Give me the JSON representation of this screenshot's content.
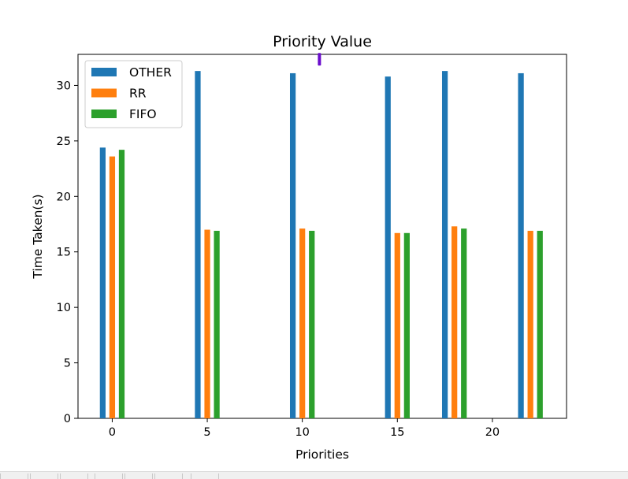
{
  "chart_data": {
    "type": "bar",
    "title": "Priority Value",
    "xlabel": "Priorities",
    "ylabel": "Time Taken(s)",
    "xlim": [
      -1.8,
      23.9
    ],
    "ylim": [
      0,
      32.8
    ],
    "x_ticks": [
      0,
      5,
      10,
      15,
      20
    ],
    "y_ticks": [
      0,
      5,
      10,
      15,
      20,
      25,
      30
    ],
    "legend_position": "top-left",
    "bar_width": 0.3,
    "series": [
      {
        "name": "OTHER",
        "color": "#1f77b4",
        "x": [
          -0.5,
          4.5,
          9.5,
          14.5,
          17.5,
          21.5
        ],
        "values": [
          24.4,
          31.3,
          31.1,
          30.8,
          31.3,
          31.1
        ]
      },
      {
        "name": "RR",
        "color": "#ff7f0e",
        "x": [
          0,
          5,
          10,
          15,
          18,
          22
        ],
        "values": [
          23.6,
          17.0,
          17.1,
          16.7,
          17.3,
          16.9
        ]
      },
      {
        "name": "FIFO",
        "color": "#2ca02c",
        "x": [
          0.5,
          5.5,
          10.5,
          15.5,
          18.5,
          22.5
        ],
        "values": [
          24.2,
          16.9,
          16.9,
          16.7,
          17.1,
          16.9
        ]
      }
    ],
    "cursor_marker": {
      "x": 10.9,
      "y": 32.5,
      "color": "#6a0dcc"
    }
  }
}
